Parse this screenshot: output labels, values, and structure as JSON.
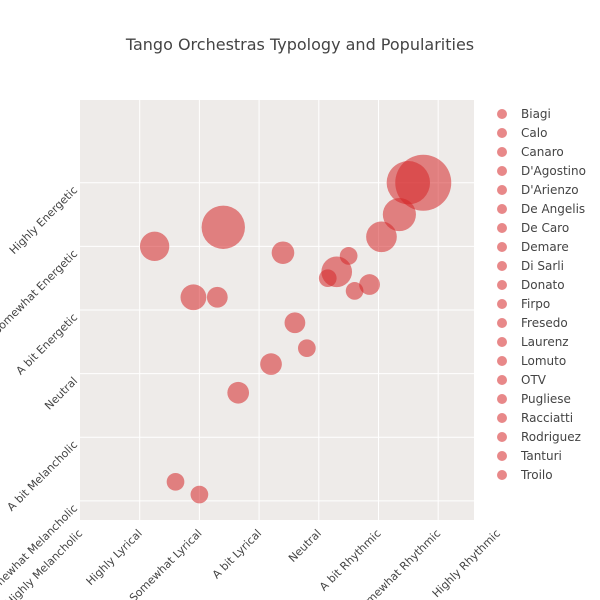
{
  "chart_data": {
    "type": "scatter",
    "title": "Tango Orchestras Typology and Popularities",
    "xlabel": "",
    "ylabel": "",
    "x_categories": [
      "Highly Melancholic",
      "Highly Lyrical",
      "Somewhat Lyrical",
      "A bit Lyrical",
      "Neutral",
      "A bit Rhythmic",
      "Somewhat Rhythmic",
      "Highly Rhythmic"
    ],
    "y_categories": [
      "Somewhat Melancholic",
      "A bit Melancholic",
      "Neutral",
      "A bit Energetic",
      "Somewhat Energetic",
      "Highly Energetic"
    ],
    "xlim": [
      0,
      6.6
    ],
    "ylim": [
      -0.3,
      6.3
    ],
    "grid": true,
    "legend_position": "right",
    "colors": {
      "marker": "#d62728",
      "plot_bg": "#eeebe9",
      "grid": "#ffffff"
    },
    "series": [
      {
        "name": "Biagi",
        "x": 5.5,
        "y": 5.0,
        "size": 2.4
      },
      {
        "name": "Calo",
        "x": 1.25,
        "y": 4.0,
        "size": 1.1
      },
      {
        "name": "Canaro",
        "x": 4.3,
        "y": 3.6,
        "size": 1.2
      },
      {
        "name": "D'Agostino",
        "x": 3.6,
        "y": 2.8,
        "size": 0.55
      },
      {
        "name": "D'Arienzo",
        "x": 5.75,
        "y": 5.0,
        "size": 4.0
      },
      {
        "name": "De Angelis",
        "x": 5.35,
        "y": 4.5,
        "size": 1.4
      },
      {
        "name": "De Caro",
        "x": 4.6,
        "y": 3.3,
        "size": 0.4
      },
      {
        "name": "Demare",
        "x": 2.3,
        "y": 3.2,
        "size": 0.55
      },
      {
        "name": "Di Sarli",
        "x": 5.05,
        "y": 4.15,
        "size": 1.2
      },
      {
        "name": "Donato",
        "x": 1.9,
        "y": 3.2,
        "size": 0.85
      },
      {
        "name": "Firpo",
        "x": 3.8,
        "y": 2.4,
        "size": 0.4
      },
      {
        "name": "Fresedo",
        "x": 3.2,
        "y": 2.15,
        "size": 0.6
      },
      {
        "name": "Laurenz",
        "x": 2.65,
        "y": 1.7,
        "size": 0.6
      },
      {
        "name": "Lomuto",
        "x": 4.15,
        "y": 3.5,
        "size": 0.4
      },
      {
        "name": "OTV",
        "x": 2.4,
        "y": 4.3,
        "size": 2.4
      },
      {
        "name": "Pugliese",
        "x": 3.4,
        "y": 3.9,
        "size": 0.65
      },
      {
        "name": "Racciatti",
        "x": 4.85,
        "y": 3.4,
        "size": 0.55
      },
      {
        "name": "Rodriguez",
        "x": 2.0,
        "y": 0.1,
        "size": 0.4
      },
      {
        "name": "Tanturi",
        "x": 1.6,
        "y": 0.3,
        "size": 0.4
      },
      {
        "name": "Troilo",
        "x": 4.5,
        "y": 3.85,
        "size": 0.4
      }
    ]
  }
}
